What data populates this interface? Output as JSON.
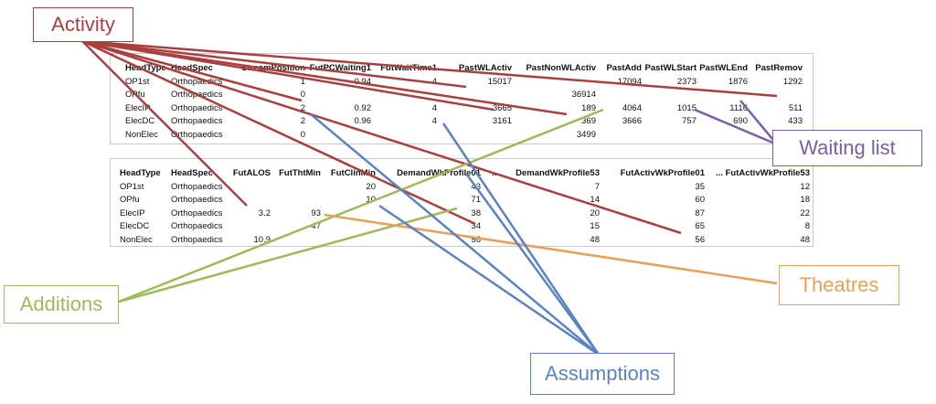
{
  "table1": {
    "headers": [
      "HeadType",
      "HeadSpec",
      "StreamPosition",
      "FutPCWaiting1",
      "FutWaitTime1",
      "PastWLActiv",
      "PastNonWLActiv",
      "PastAdd",
      "PastWLStart",
      "PastWLEnd",
      "PastRemov"
    ],
    "rows": [
      [
        "OP1st",
        "Orthopaedics",
        "1",
        "0.94",
        "4",
        "15017",
        "",
        "17094",
        "2373",
        "1876",
        "1292"
      ],
      [
        "OPfu",
        "Orthopaedics",
        "0",
        "",
        "",
        "",
        "36914",
        "",
        "",
        "",
        ""
      ],
      [
        "ElecIP",
        "Orthopaedics",
        "2",
        "0.92",
        "4",
        "3665",
        "189",
        "4064",
        "1015",
        "1116",
        "511"
      ],
      [
        "ElecDC",
        "Orthopaedics",
        "2",
        "0.96",
        "4",
        "3161",
        "369",
        "3666",
        "757",
        "690",
        "433"
      ],
      [
        "NonElec",
        "Orthopaedics",
        "0",
        "",
        "",
        "",
        "3499",
        "",
        "",
        "",
        ""
      ]
    ]
  },
  "table2": {
    "headers": [
      "HeadType",
      "HeadSpec",
      "FutALOS",
      "FutThtMin",
      "FutClinMin",
      "DemandWkProfile01",
      "...",
      "DemandWkProfile53",
      "FutActivWkProfile01",
      "...",
      "FutActivWkProfile53"
    ],
    "rows": [
      [
        "OP1st",
        "Orthopaedics",
        "",
        "",
        "20",
        "43",
        "",
        "7",
        "35",
        "",
        "12"
      ],
      [
        "OPfu",
        "Orthopaedics",
        "",
        "",
        "10",
        "71",
        "",
        "14",
        "60",
        "",
        "18"
      ],
      [
        "ElecIP",
        "Orthopaedics",
        "3.2",
        "93",
        "",
        "38",
        "",
        "20",
        "87",
        "",
        "22"
      ],
      [
        "ElecDC",
        "Orthopaedics",
        "",
        "47",
        "",
        "34",
        "",
        "15",
        "65",
        "",
        "8"
      ],
      [
        "NonElec",
        "Orthopaedics",
        "10.9",
        "",
        "",
        "56",
        "",
        "48",
        "56",
        "",
        "48"
      ]
    ]
  },
  "callouts": {
    "activity": "Activity",
    "waiting_list": "Waiting list",
    "additions": "Additions",
    "theatres": "Theatres",
    "assumptions": "Assumptions"
  },
  "colors": {
    "activity": "#a94040",
    "waiting_list": "#7a5fa8",
    "additions": "#9dbb5a",
    "theatres": "#e8a05a",
    "assumptions": "#5b82c2"
  }
}
